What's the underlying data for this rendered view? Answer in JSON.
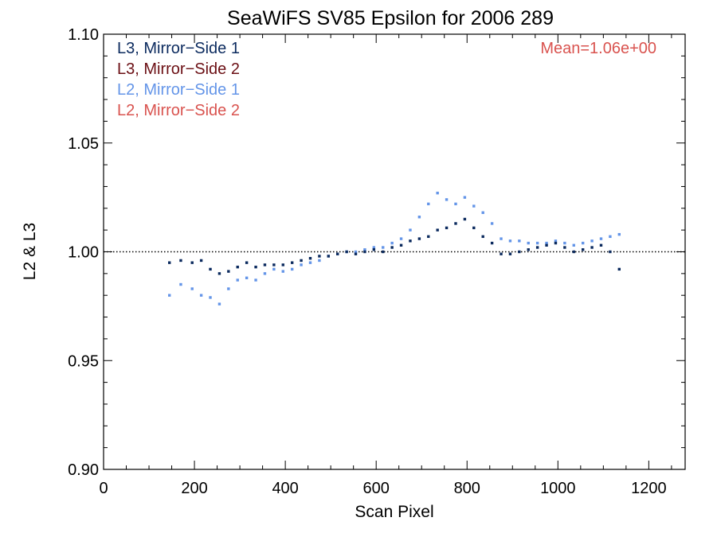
{
  "chart_data": {
    "type": "scatter",
    "title": "SeaWiFS SV85 Epsilon for 2006 289",
    "xlabel": "Scan Pixel",
    "ylabel": "L2 & L3",
    "xlim": [
      0,
      1280
    ],
    "ylim": [
      0.9,
      1.1
    ],
    "x_ticks": [
      0,
      200,
      400,
      600,
      800,
      1000,
      1200
    ],
    "x_tick_labels": [
      "0",
      "200",
      "400",
      "600",
      "800",
      "1000",
      "1200"
    ],
    "y_ticks": [
      0.9,
      0.95,
      1.0,
      1.05,
      1.1
    ],
    "y_tick_labels": [
      "0.90",
      "0.95",
      "1.00",
      "1.05",
      "1.10"
    ],
    "reference_line": 1.0,
    "grid": false,
    "legend_position": "top-left",
    "annotation": {
      "text": "Mean=1.06e+00",
      "color": "#d9534f",
      "position": "top-right"
    },
    "series": [
      {
        "name": "L3, Mirror−Side 1",
        "color": "#0b2a5e",
        "x": [
          145,
          170,
          195,
          215,
          235,
          255,
          275,
          295,
          315,
          335,
          355,
          375,
          395,
          415,
          435,
          455,
          475,
          495,
          515,
          535,
          555,
          575,
          595,
          615,
          635,
          655,
          675,
          695,
          715,
          735,
          755,
          775,
          795,
          815,
          835,
          855,
          875,
          895,
          915,
          935,
          955,
          975,
          995,
          1015,
          1035,
          1055,
          1075,
          1095,
          1115,
          1135
        ],
        "y": [
          0.995,
          0.996,
          0.995,
          0.996,
          0.992,
          0.99,
          0.991,
          0.993,
          0.995,
          0.993,
          0.994,
          0.994,
          0.994,
          0.995,
          0.996,
          0.997,
          0.998,
          0.998,
          0.999,
          1.0,
          0.999,
          1.0,
          1.001,
          1.0,
          1.002,
          1.003,
          1.005,
          1.006,
          1.007,
          1.01,
          1.011,
          1.013,
          1.015,
          1.011,
          1.007,
          1.004,
          0.999,
          0.999,
          1.0,
          1.001,
          1.002,
          1.003,
          1.004,
          1.002,
          1.0,
          1.001,
          1.002,
          1.003,
          1.0,
          0.992
        ]
      },
      {
        "name": "L3, Mirror−Side 2",
        "color": "#6b0f14",
        "x": [],
        "y": []
      },
      {
        "name": "L2, Mirror−Side 1",
        "color": "#6495e8",
        "x": [
          145,
          170,
          195,
          215,
          235,
          255,
          275,
          295,
          315,
          335,
          355,
          375,
          395,
          415,
          435,
          455,
          475,
          495,
          515,
          535,
          555,
          575,
          595,
          615,
          635,
          655,
          675,
          695,
          715,
          735,
          755,
          775,
          795,
          815,
          835,
          855,
          875,
          895,
          915,
          935,
          955,
          975,
          995,
          1015,
          1035,
          1055,
          1075,
          1095,
          1115,
          1135
        ],
        "y": [
          0.98,
          0.985,
          0.983,
          0.98,
          0.979,
          0.976,
          0.983,
          0.987,
          0.988,
          0.987,
          0.99,
          0.992,
          0.991,
          0.992,
          0.994,
          0.995,
          0.996,
          0.998,
          0.999,
          1.0,
          1.0,
          1.001,
          1.002,
          1.002,
          1.004,
          1.006,
          1.01,
          1.016,
          1.022,
          1.027,
          1.024,
          1.022,
          1.025,
          1.021,
          1.018,
          1.013,
          1.006,
          1.005,
          1.005,
          1.004,
          1.004,
          1.004,
          1.005,
          1.004,
          1.003,
          1.004,
          1.005,
          1.006,
          1.007,
          1.008
        ]
      },
      {
        "name": "L2, Mirror−Side 2",
        "color": "#d9534f",
        "x": [],
        "y": []
      }
    ]
  }
}
